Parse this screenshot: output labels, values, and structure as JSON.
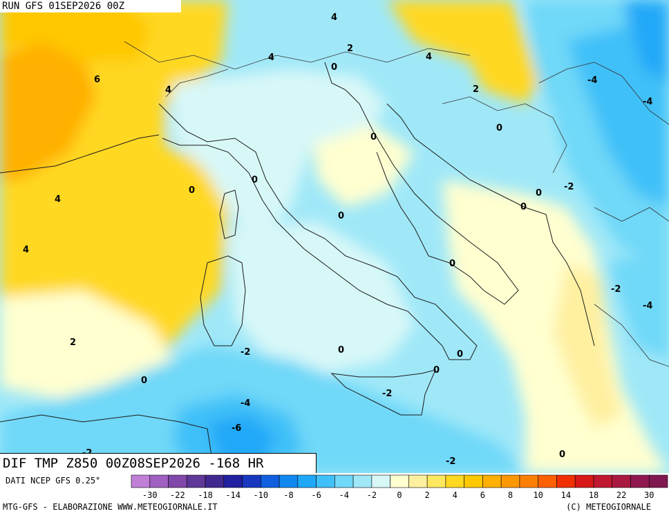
{
  "header": {
    "run_label": "RUN GFS 01SEP2026 00Z",
    "field_label": "DIF TMP Z850 00Z08SEP2026 -168 HR"
  },
  "footer": {
    "data_source": "DATI NCEP GFS 0.25°",
    "credits_left": "MTG-GFS - ELABORAZIONE WWW.METEOGIORNALE.IT",
    "credits_right": "(C) METEOGIORNALE"
  },
  "legend": {
    "tick_labels": [
      "-30",
      "-22",
      "-18",
      "-14",
      "-10",
      "-8",
      "-6",
      "-4",
      "-2",
      "0",
      "2",
      "4",
      "6",
      "8",
      "10",
      "14",
      "18",
      "22",
      "30"
    ],
    "colors": [
      "#c080d8",
      "#a060c0",
      "#8048a8",
      "#603898",
      "#402890",
      "#2020a0",
      "#1838c0",
      "#1060e0",
      "#1088f0",
      "#20a8f8",
      "#40c0f8",
      "#70d8f8",
      "#a0e8f8",
      "#d8f8f8",
      "#ffffd0",
      "#fff0a0",
      "#ffe860",
      "#ffd820",
      "#ffc800",
      "#ffb000",
      "#ff9800",
      "#ff8000",
      "#ff6000",
      "#f03000",
      "#d81818",
      "#c01830",
      "#a81840",
      "#901850",
      "#801850"
    ]
  },
  "map_labels": {
    "values": [
      "4",
      "2",
      "4",
      "4",
      "6",
      "4",
      "0",
      "2",
      "-4",
      "-4",
      "0",
      "0",
      "0",
      "-2",
      "0",
      "0",
      "4",
      "4",
      "0",
      "-2",
      "-4",
      "0",
      "0",
      "2",
      "-2",
      "0",
      "0",
      "-2",
      "-4",
      "-6",
      "-2",
      "-2",
      "0"
    ]
  },
  "colors": {
    "warm_orange": "#ffb000",
    "yellow": "#ffd820",
    "pale_yellow": "#ffffd0",
    "pale_cyan": "#d8f8f8",
    "cyan": "#70d8f8",
    "blue": "#20a8f8"
  }
}
